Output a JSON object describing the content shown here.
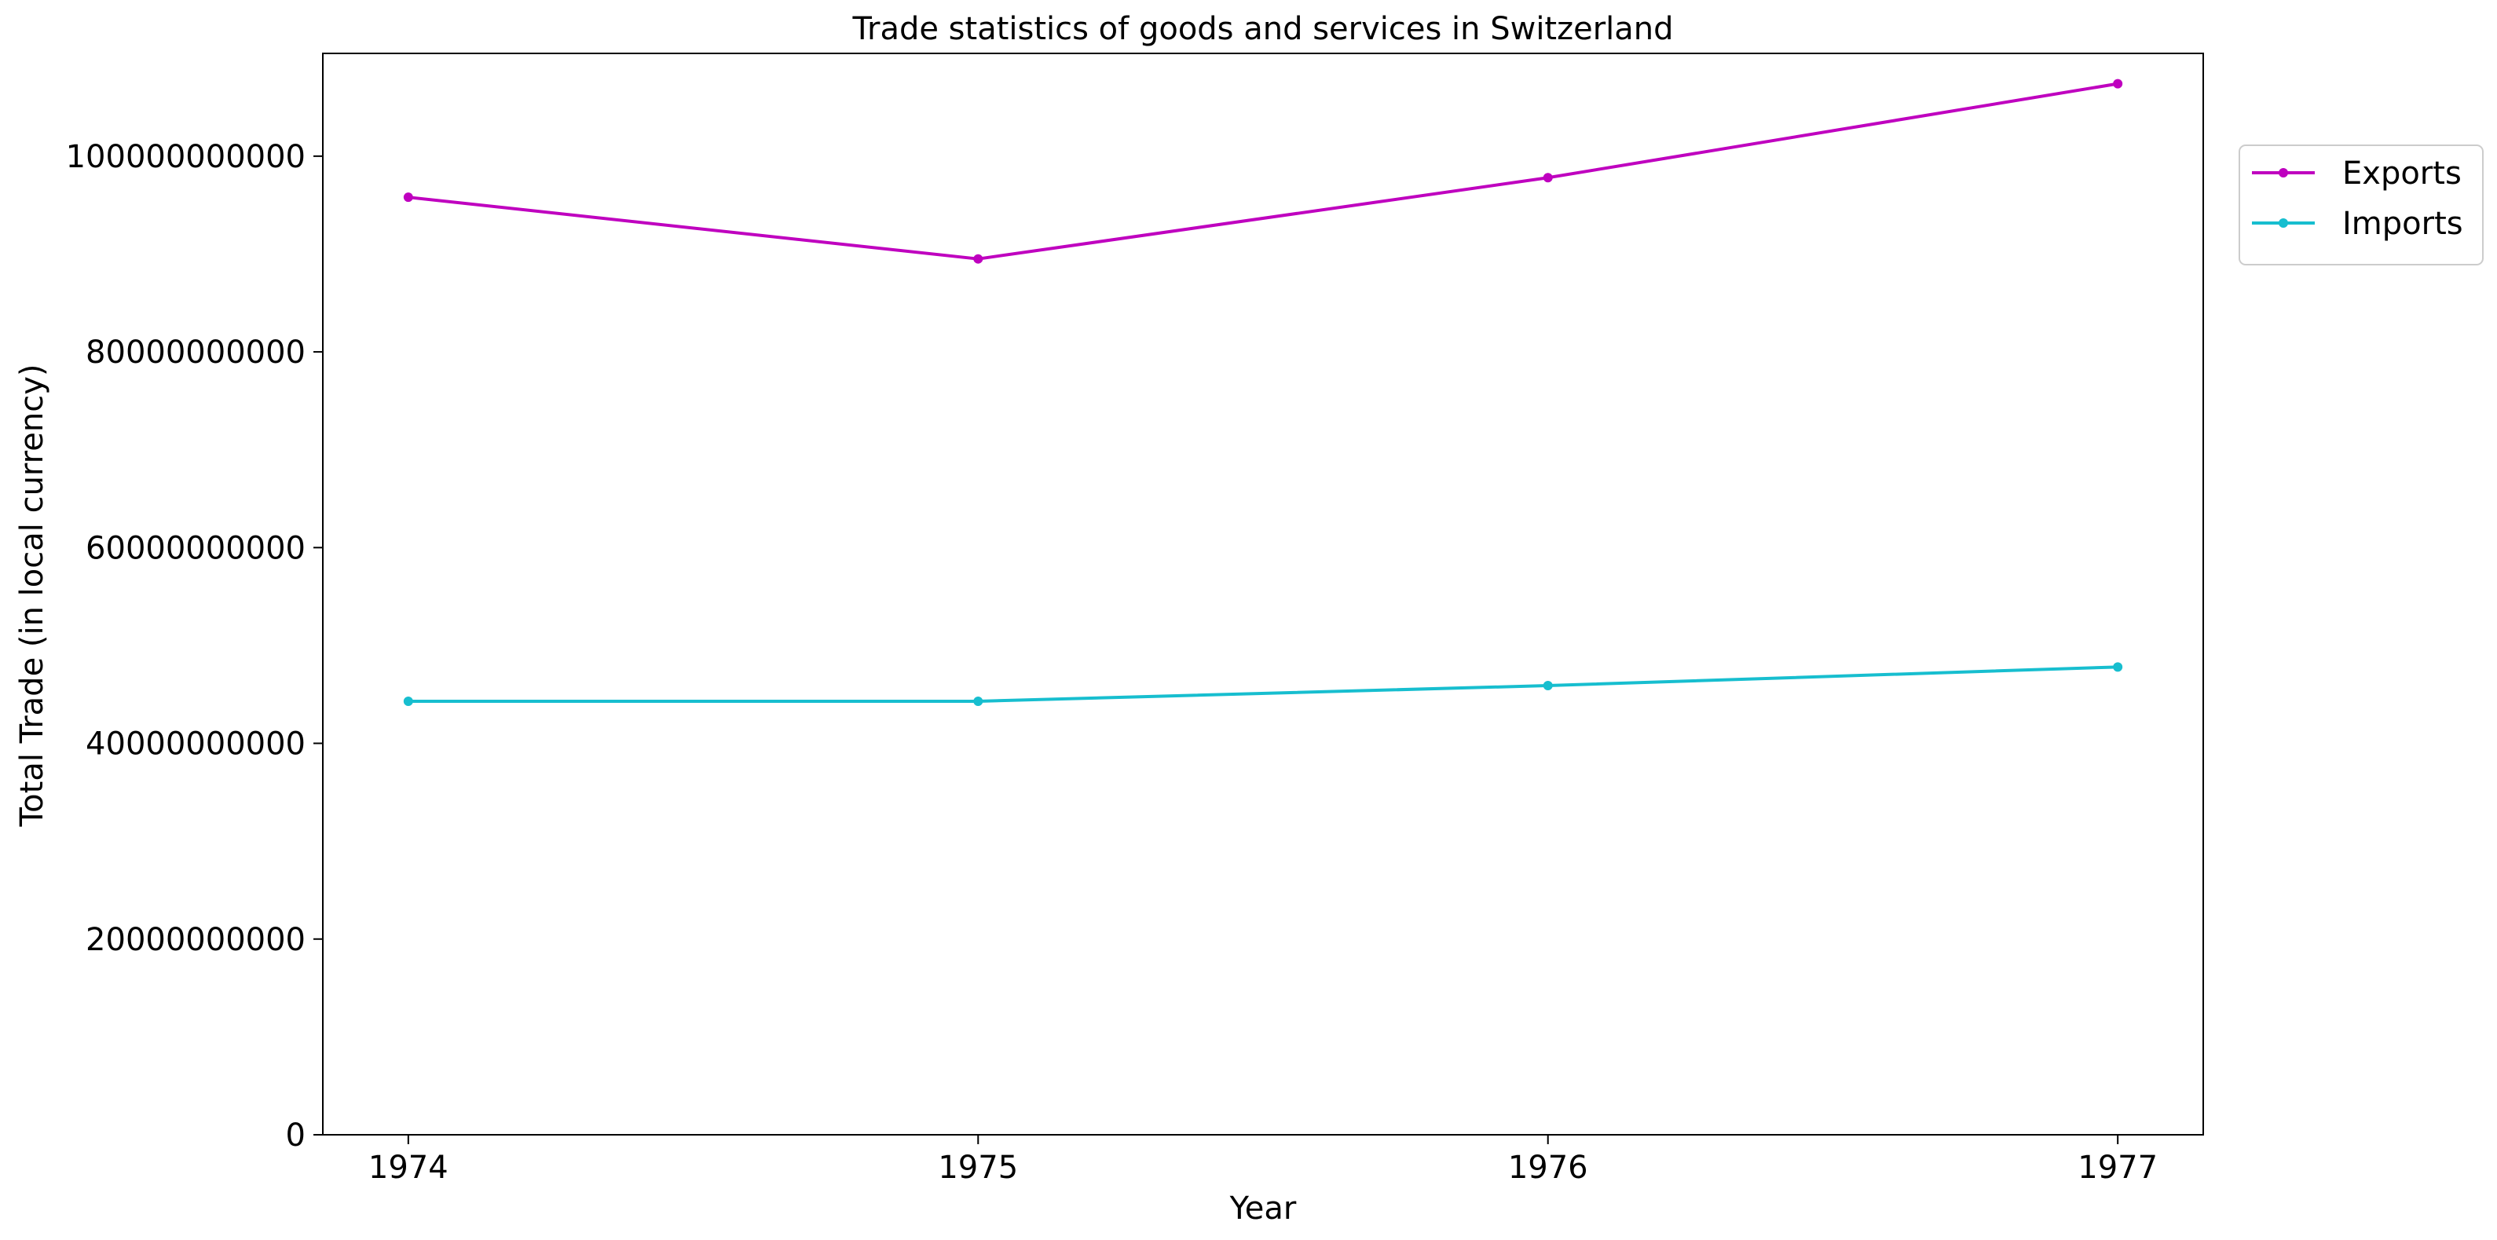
{
  "chart_data": {
    "type": "line",
    "title": "Trade statistics of goods and services in Switzerland",
    "xlabel": "Year",
    "ylabel": "Total Trade (in local currency)",
    "x": [
      1974,
      1975,
      1976,
      1977
    ],
    "x_tick_labels": [
      "1974",
      "1975",
      "1976",
      "1977"
    ],
    "y_ticks": [
      0,
      20000000000,
      40000000000,
      60000000000,
      80000000000,
      100000000000
    ],
    "y_tick_labels": [
      "0",
      "20000000000",
      "40000000000",
      "60000000000",
      "80000000000",
      "100000000000"
    ],
    "ylim": [
      0,
      110500000000
    ],
    "xlim": [
      1973.85,
      1977.15
    ],
    "grid": false,
    "legend_position": "outside upper-right",
    "series": [
      {
        "name": "Exports",
        "color": "#bf00bf",
        "values": [
          95800000000,
          89500000000,
          97800000000,
          107400000000
        ]
      },
      {
        "name": "Imports",
        "color": "#17becf",
        "values": [
          44300000000,
          44300000000,
          45900000000,
          47800000000
        ]
      }
    ]
  }
}
